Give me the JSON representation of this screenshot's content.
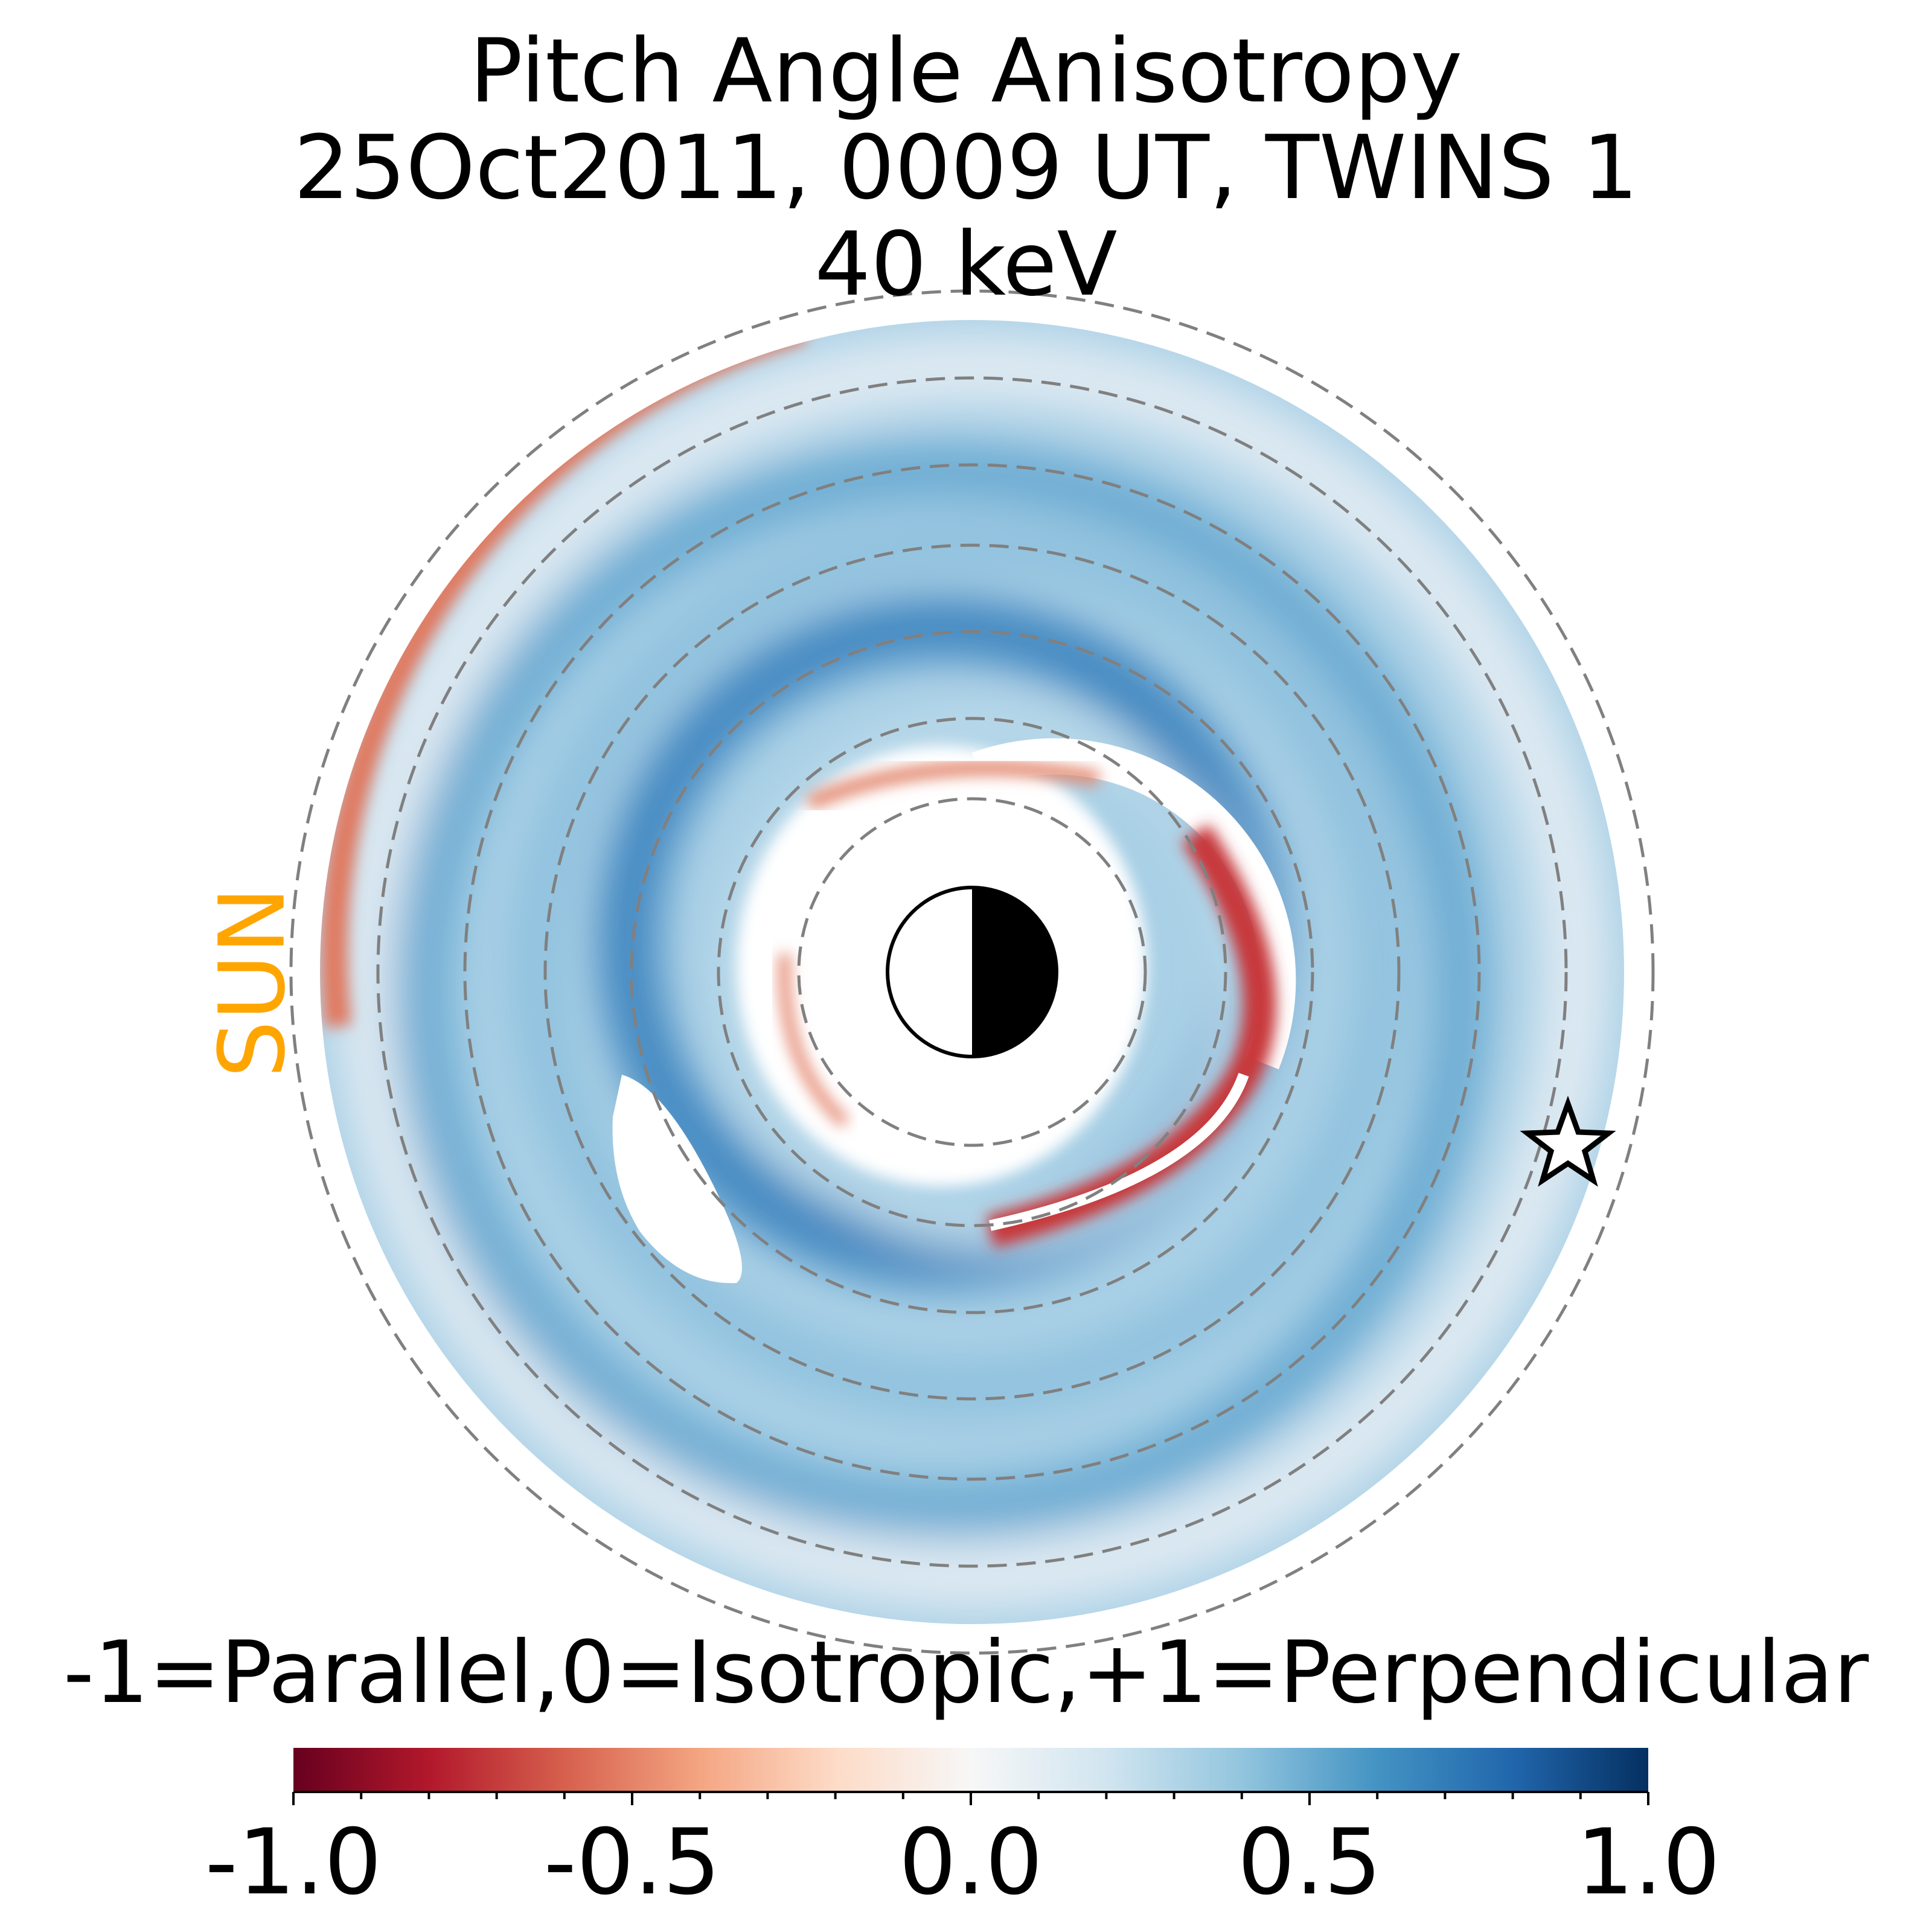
{
  "title": {
    "line1": "Pitch Angle Anisotropy",
    "line2": "25Oct2011, 0009 UT,  TWINS 1",
    "line3": "40 keV"
  },
  "sun_label": "SUN",
  "colors": {
    "sun": "#FFA500",
    "grid": "#808080",
    "colormap": [
      "#67001f",
      "#b2182b",
      "#d6604d",
      "#f4a582",
      "#fddbc7",
      "#f7f7f7",
      "#d1e5f0",
      "#92c5de",
      "#4393c3",
      "#2166ac",
      "#053061"
    ]
  },
  "chart_data": {
    "type": "heatmap",
    "projection": "polar equatorial map, Earth at center, Sun to the left",
    "colorbar": {
      "label": "-1=Parallel,0=Isotropic,+1=Perpendicular",
      "range": [
        -1.0,
        1.0
      ],
      "colormap": "RdBu",
      "ticks": [
        -1.0,
        -0.5,
        0.0,
        0.5,
        1.0
      ],
      "tick_labels": [
        "-1.0",
        "-0.5",
        "0.0",
        "0.5",
        "1.0"
      ]
    },
    "grid_circles": 7,
    "markers": [
      "earth-day-night",
      "spacecraft-star"
    ]
  }
}
